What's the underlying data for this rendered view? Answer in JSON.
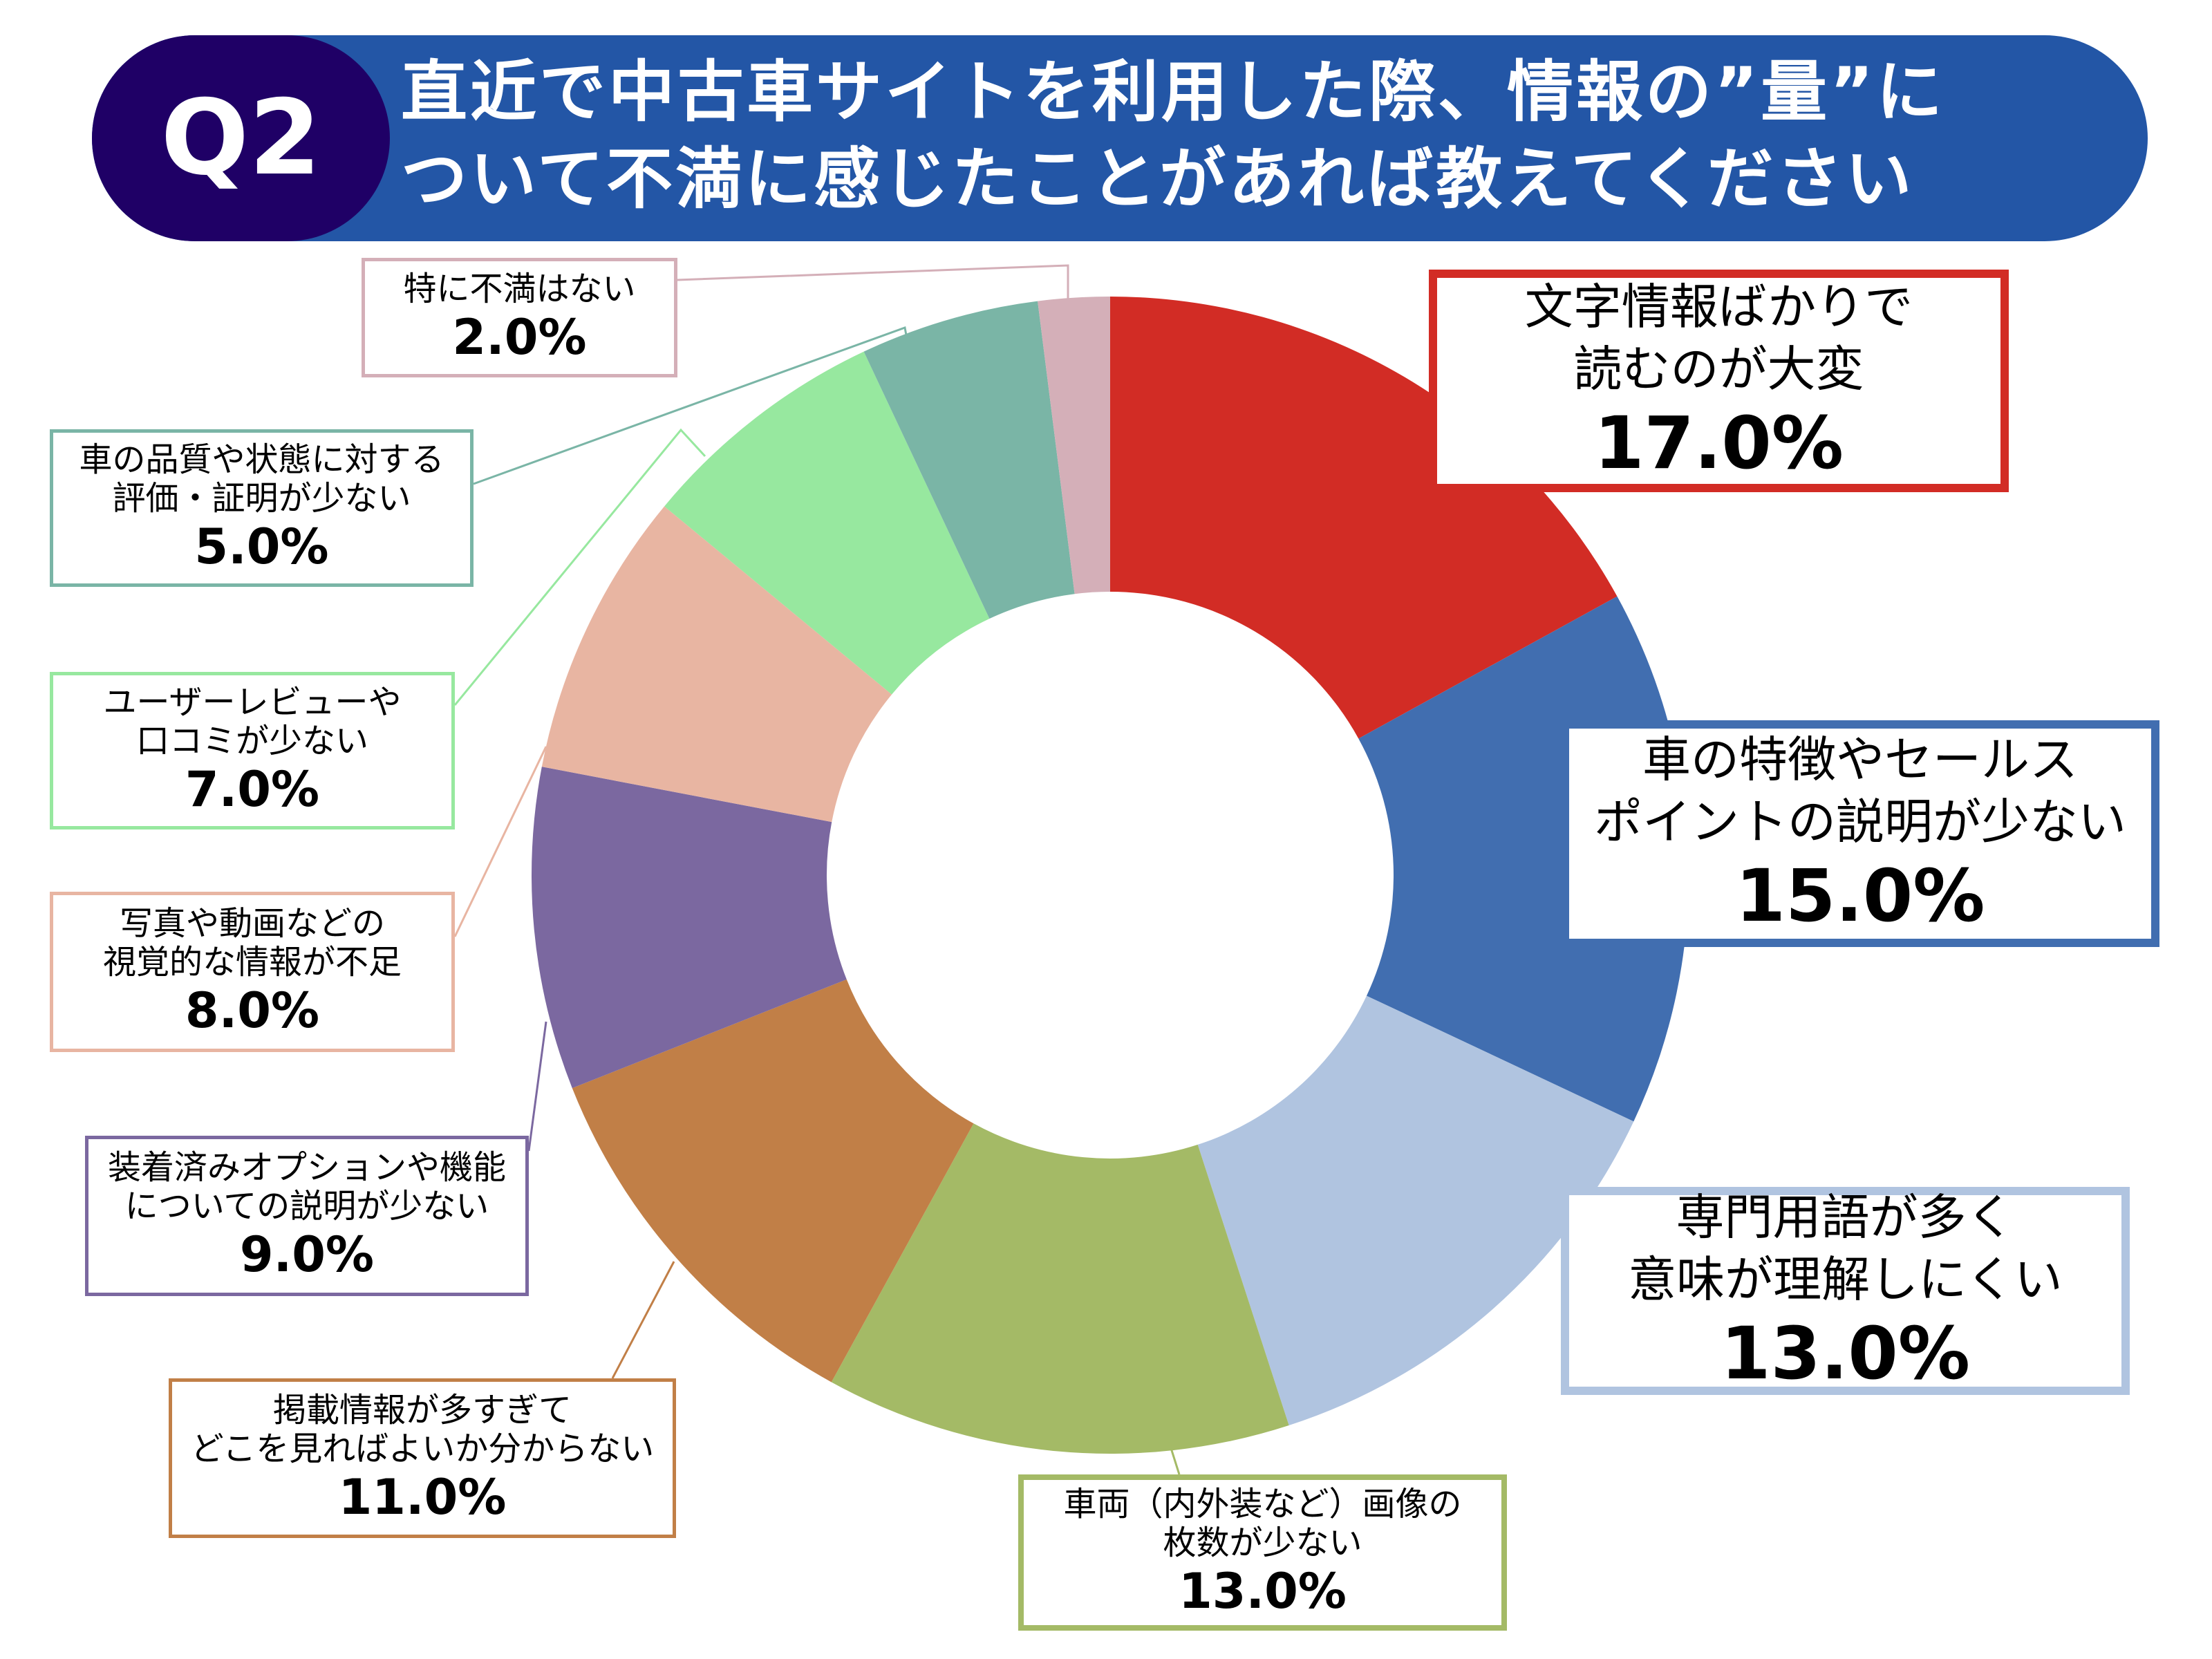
{
  "header": {
    "badge": "Q2",
    "title": "直近で中古車サイトを利用した際、情報の”量”に\nついて不満に感じたことがあれば教えてください"
  },
  "chart_data": {
    "type": "pie",
    "donut": true,
    "start": "top, clockwise",
    "categories": [
      "文字情報ばかりで\n読むのが大変",
      "車の特徴やセールス\nポイントの説明が少ない",
      "専門用語が多く\n意味が理解しにくい",
      "車両（内外装など）画像の\n枚数が少ない",
      "掲載情報が多すぎて\nどこを見ればよいか分からない",
      "装着済みオプションや機能\nについての説明が少ない",
      "写真や動画などの\n視覚的な情報が不足",
      "ユーザーレビューや\n口コミが少ない",
      "車の品質や状態に対する\n評価・証明が少ない",
      "特に不満はない"
    ],
    "values": [
      17.0,
      15.0,
      13.0,
      13.0,
      11.0,
      9.0,
      8.0,
      7.0,
      5.0,
      2.0
    ],
    "data_labels": [
      "17.0%",
      "15.0%",
      "13.0%",
      "13.0%",
      "11.0%",
      "9.0%",
      "8.0%",
      "7.0%",
      "5.0%",
      "2.0%"
    ],
    "colors": [
      "#D22C25",
      "#416EB0",
      "#B0C4E0",
      "#A4BA66",
      "#C17F47",
      "#7B68A0",
      "#E8B5A2",
      "#97E89F",
      "#7AB5A6",
      "#D4AFB8"
    ]
  }
}
